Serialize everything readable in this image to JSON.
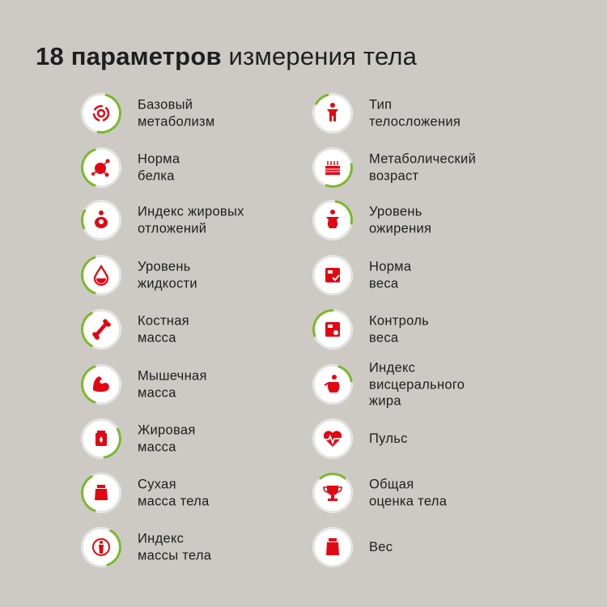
{
  "title": {
    "bold": "18 параметров",
    "rest": " измерения тела"
  },
  "colors": {
    "accent_red": "#e30613",
    "progress_green": "#7ab829",
    "background": "#cdc9c5"
  },
  "left_column": [
    {
      "lines": [
        "Базовый",
        "метаболизм"
      ],
      "icon": "metabolism-cycle-icon"
    },
    {
      "lines": [
        "Норма",
        "белка"
      ],
      "icon": "protein-molecule-icon"
    },
    {
      "lines": [
        "Индекс жировых",
        "отложений"
      ],
      "icon": "fat-deposit-icon"
    },
    {
      "lines": [
        "Уровень",
        "жидкости"
      ],
      "icon": "water-drop-icon"
    },
    {
      "lines": [
        "Костная",
        "масса"
      ],
      "icon": "bone-icon"
    },
    {
      "lines": [
        "Мышечная",
        "масса"
      ],
      "icon": "muscle-arm-icon"
    },
    {
      "lines": [
        "Жировая",
        "масса"
      ],
      "icon": "fat-jar-icon"
    },
    {
      "lines": [
        "Сухая",
        "масса тела"
      ],
      "icon": "lean-mass-weight-icon"
    },
    {
      "lines": [
        "Индекс",
        "массы тела"
      ],
      "icon": "bmi-body-icon"
    }
  ],
  "right_column": [
    {
      "lines": [
        "Тип",
        "телосложения"
      ],
      "icon": "body-type-icon"
    },
    {
      "lines": [
        "Метаболический",
        "возраст"
      ],
      "icon": "birthday-cake-icon"
    },
    {
      "lines": [
        "Уровень",
        "ожирения"
      ],
      "icon": "obesity-figure-icon"
    },
    {
      "lines": [
        "Норма",
        "веса"
      ],
      "icon": "scale-check-icon"
    },
    {
      "lines": [
        "Контроль",
        "веса"
      ],
      "icon": "scale-control-icon"
    },
    {
      "lines": [
        "Индекс",
        "висцерального",
        "жира"
      ],
      "icon": "visceral-fat-icon"
    },
    {
      "lines": [
        "Пульс"
      ],
      "icon": "heart-pulse-icon"
    },
    {
      "lines": [
        "Общая",
        "оценка тела"
      ],
      "icon": "trophy-icon"
    },
    {
      "lines": [
        "Вес"
      ],
      "icon": "weight-icon"
    }
  ]
}
